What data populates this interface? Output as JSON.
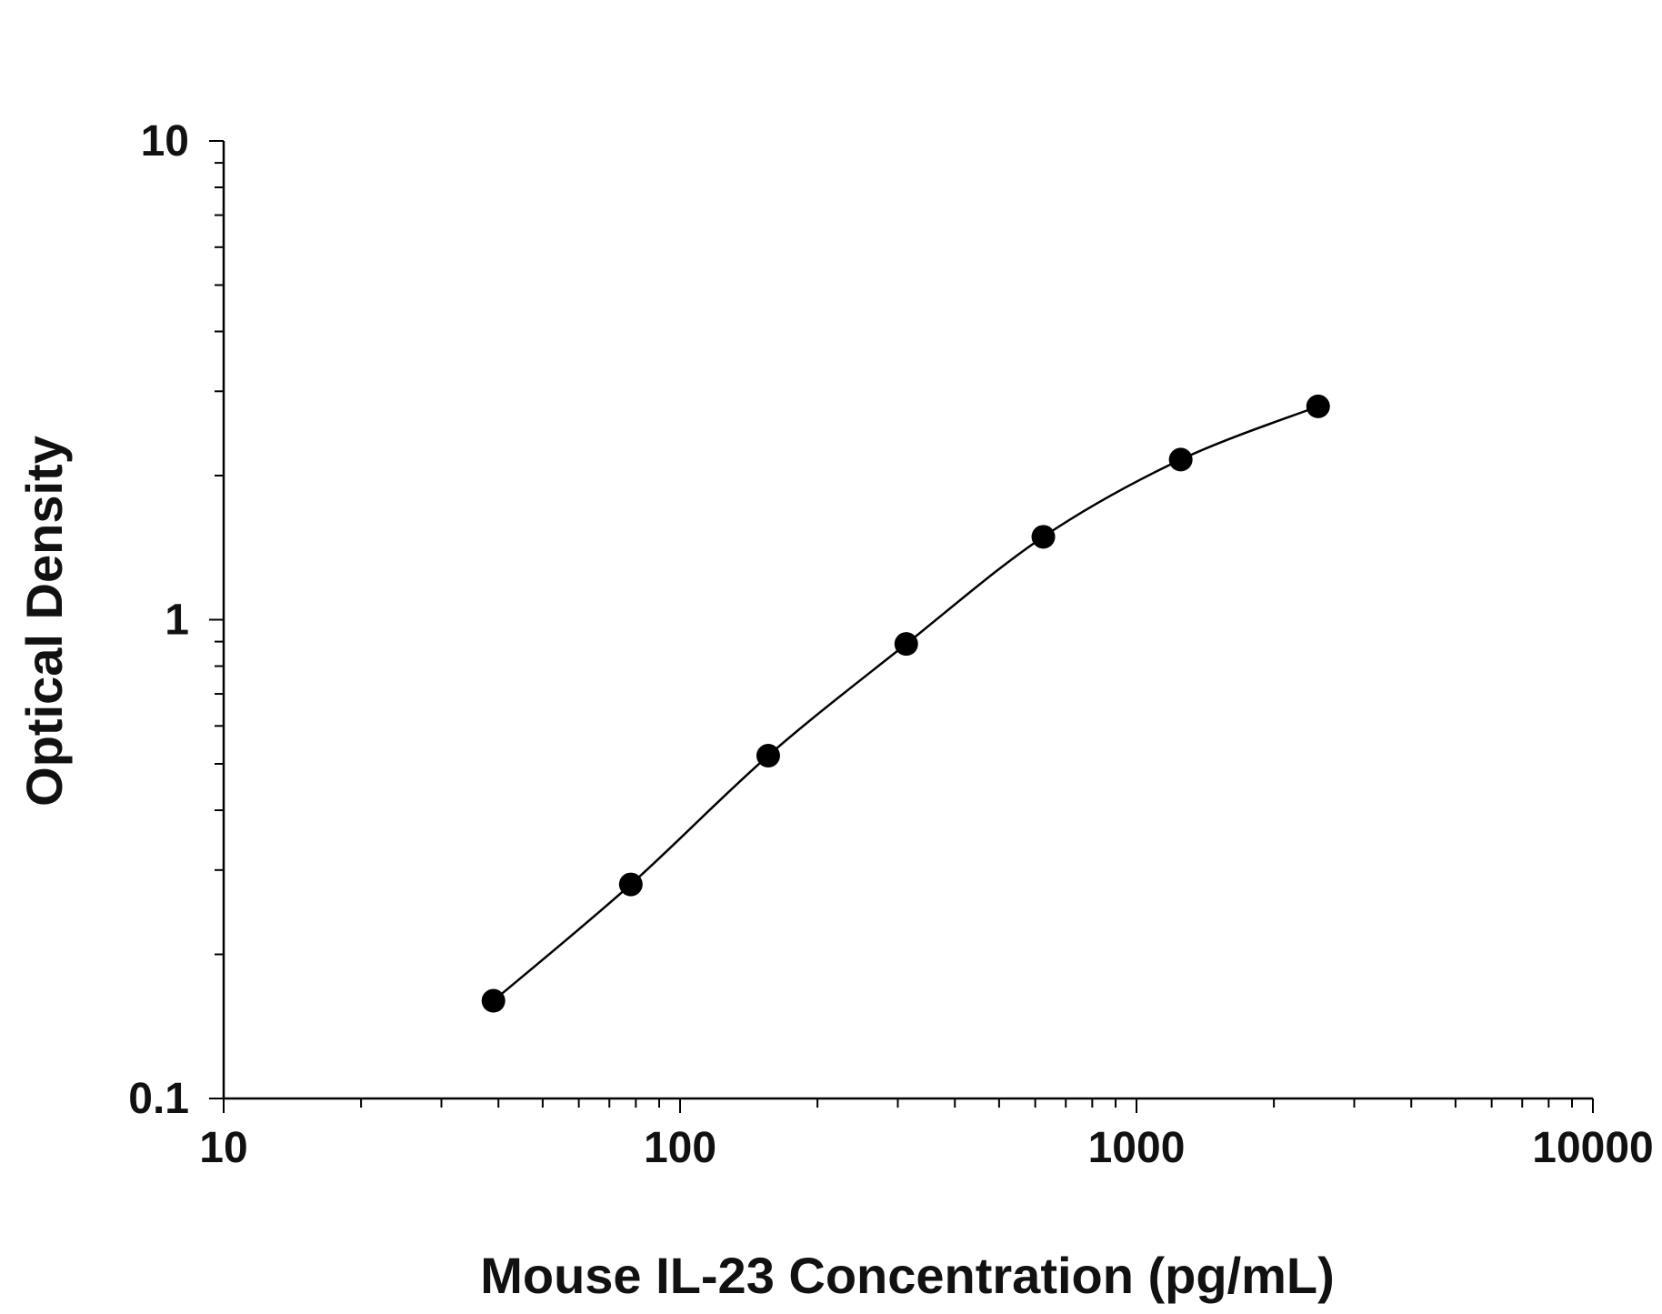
{
  "chart_data": {
    "type": "scatter",
    "title": "",
    "xlabel": "Mouse IL-23 Concentration (pg/mL)",
    "ylabel": "Optical Density",
    "x_scale": "log",
    "y_scale": "log",
    "xlim": [
      10,
      10000
    ],
    "ylim": [
      0.1,
      10
    ],
    "x_ticks": [
      "10",
      "100",
      "1000",
      "10000"
    ],
    "y_ticks": [
      "0.1",
      "1",
      "10"
    ],
    "grid": false,
    "legend": "none",
    "fit_line": "smooth curve through points",
    "colors": {
      "marker": "#000000",
      "line": "#000000",
      "axis": "#000000"
    },
    "series": [
      {
        "x": [
          39,
          78,
          156,
          313,
          625,
          1250,
          2500
        ],
        "y": [
          0.16,
          0.28,
          0.52,
          0.89,
          1.49,
          2.16,
          2.79
        ]
      }
    ]
  }
}
